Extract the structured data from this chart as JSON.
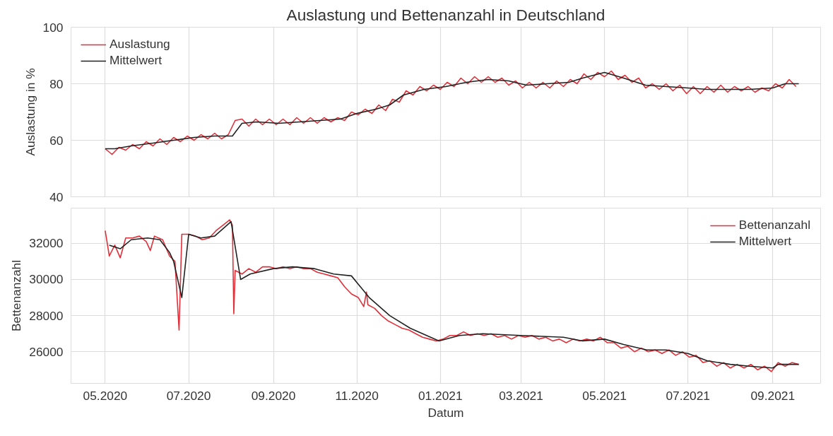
{
  "chart_data": [
    {
      "type": "line",
      "title": "Auslastung und Bettenanzahl in Deutschland",
      "ylabel": "Auslastung in %",
      "xlim": [
        "2020-04-06",
        "2021-10-06"
      ],
      "ylim": [
        40,
        100
      ],
      "yticks": [
        40,
        60,
        80,
        100
      ],
      "xticks": [
        {
          "value": "2020-05-01",
          "label": null
        },
        {
          "value": "2020-07-01",
          "label": null
        },
        {
          "value": "2020-09-01",
          "label": null
        },
        {
          "value": "2020-11-01",
          "label": null
        },
        {
          "value": "2021-01-01",
          "label": null
        },
        {
          "value": "2021-03-01",
          "label": null
        },
        {
          "value": "2021-05-01",
          "label": null
        },
        {
          "value": "2021-07-01",
          "label": null
        },
        {
          "value": "2021-09-01",
          "label": null
        }
      ],
      "tick_labels": "y",
      "grid": true,
      "legend": "top left",
      "marker": "none",
      "line_style": "solid",
      "series": [
        {
          "name": "Auslastung",
          "color": "#e0303a",
          "x": [
            "2020-05-01",
            "2020-05-06",
            "2020-05-11",
            "2020-05-16",
            "2020-05-21",
            "2020-05-26",
            "2020-05-31",
            "2020-06-05",
            "2020-06-10",
            "2020-06-15",
            "2020-06-20",
            "2020-06-25",
            "2020-06-30",
            "2020-07-05",
            "2020-07-10",
            "2020-07-15",
            "2020-07-20",
            "2020-07-25",
            "2020-07-30",
            "2020-08-04",
            "2020-08-09",
            "2020-08-14",
            "2020-08-19",
            "2020-08-24",
            "2020-08-29",
            "2020-09-03",
            "2020-09-08",
            "2020-09-13",
            "2020-09-18",
            "2020-09-23",
            "2020-09-28",
            "2020-10-03",
            "2020-10-08",
            "2020-10-13",
            "2020-10-18",
            "2020-10-23",
            "2020-10-28",
            "2020-11-02",
            "2020-11-07",
            "2020-11-12",
            "2020-11-17",
            "2020-11-22",
            "2020-11-27",
            "2020-12-02",
            "2020-12-07",
            "2020-12-12",
            "2020-12-17",
            "2020-12-22",
            "2020-12-27",
            "2021-01-01",
            "2021-01-06",
            "2021-01-11",
            "2021-01-16",
            "2021-01-21",
            "2021-01-26",
            "2021-01-31",
            "2021-02-05",
            "2021-02-10",
            "2021-02-15",
            "2021-02-20",
            "2021-02-25",
            "2021-03-02",
            "2021-03-07",
            "2021-03-12",
            "2021-03-17",
            "2021-03-22",
            "2021-03-27",
            "2021-04-01",
            "2021-04-06",
            "2021-04-11",
            "2021-04-16",
            "2021-04-21",
            "2021-04-26",
            "2021-05-01",
            "2021-05-06",
            "2021-05-11",
            "2021-05-16",
            "2021-05-21",
            "2021-05-26",
            "2021-05-31",
            "2021-06-05",
            "2021-06-10",
            "2021-06-15",
            "2021-06-20",
            "2021-06-25",
            "2021-06-30",
            "2021-07-05",
            "2021-07-10",
            "2021-07-15",
            "2021-07-20",
            "2021-07-25",
            "2021-07-30",
            "2021-08-04",
            "2021-08-09",
            "2021-08-14",
            "2021-08-19",
            "2021-08-24",
            "2021-08-29",
            "2021-09-03",
            "2021-09-08",
            "2021-09-13",
            "2021-09-18"
          ],
          "values": [
            57,
            55,
            57.5,
            56.5,
            58.5,
            57,
            59.5,
            58,
            60.5,
            58.5,
            61,
            59.5,
            61.5,
            60,
            62,
            60.5,
            62.5,
            60.5,
            62,
            67,
            67.5,
            65,
            67.5,
            65.5,
            67.5,
            65.5,
            67.5,
            65.5,
            68,
            66,
            68,
            66,
            68,
            66.5,
            68,
            67,
            70,
            69,
            71,
            69.5,
            72.5,
            70.5,
            74.5,
            73.5,
            77.5,
            76,
            79,
            77.5,
            79.5,
            78,
            80.5,
            79,
            82,
            80,
            82.5,
            80.5,
            82.5,
            80.5,
            82,
            79.5,
            81,
            78.5,
            80.5,
            78.5,
            80.5,
            78.5,
            81,
            79,
            81.5,
            80,
            83.5,
            81.5,
            84,
            82.5,
            84.5,
            81.5,
            83,
            80.5,
            82,
            78.5,
            80,
            78,
            80,
            77.5,
            79.5,
            76.5,
            79,
            76.5,
            79,
            77,
            79.5,
            77,
            79,
            77.5,
            79,
            77,
            78.5,
            77.5,
            80,
            78.5,
            81.5,
            79
          ]
        },
        {
          "name": "Mittelwert",
          "color": "#222222",
          "x": [
            "2020-05-01",
            "2020-05-08",
            "2020-05-20",
            "2020-06-05",
            "2020-06-20",
            "2020-07-05",
            "2020-07-20",
            "2020-08-02",
            "2020-08-09",
            "2020-08-20",
            "2020-09-05",
            "2020-09-20",
            "2020-10-05",
            "2020-10-20",
            "2020-11-01",
            "2020-11-15",
            "2020-11-25",
            "2020-12-05",
            "2020-12-20",
            "2021-01-05",
            "2021-01-20",
            "2021-02-05",
            "2021-02-20",
            "2021-03-05",
            "2021-03-20",
            "2021-04-05",
            "2021-04-15",
            "2021-05-01",
            "2021-05-15",
            "2021-05-31",
            "2021-06-15",
            "2021-07-01",
            "2021-07-15",
            "2021-08-01",
            "2021-08-15",
            "2021-09-01",
            "2021-09-10",
            "2021-09-20"
          ],
          "values": [
            57,
            57,
            58,
            59,
            60,
            61,
            61.5,
            61.5,
            66,
            66.5,
            66,
            66.5,
            67,
            67.5,
            69.5,
            71,
            72.5,
            76,
            78,
            79,
            80.5,
            81.5,
            81,
            79.5,
            80,
            80.5,
            82,
            84,
            82,
            79.5,
            79,
            78.5,
            78,
            78,
            78,
            78.5,
            80,
            80
          ]
        }
      ]
    },
    {
      "type": "line",
      "xlabel": "Datum",
      "ylabel": "Bettenanzahl",
      "xlim": [
        "2020-04-06",
        "2021-10-06"
      ],
      "ylim": [
        24250,
        33950
      ],
      "yticks": [
        26000,
        28000,
        30000,
        32000
      ],
      "xticks": [
        {
          "value": "2020-05-01",
          "label": "05.2020"
        },
        {
          "value": "2020-07-01",
          "label": "07.2020"
        },
        {
          "value": "2020-09-01",
          "label": "09.2020"
        },
        {
          "value": "2020-11-01",
          "label": "11.2020"
        },
        {
          "value": "2021-01-01",
          "label": "01.2021"
        },
        {
          "value": "2021-03-01",
          "label": "03.2021"
        },
        {
          "value": "2021-05-01",
          "label": "05.2021"
        },
        {
          "value": "2021-07-01",
          "label": "07.2021"
        },
        {
          "value": "2021-09-01",
          "label": "09.2021"
        }
      ],
      "grid": true,
      "legend": "top right",
      "marker": "none",
      "line_style": "solid",
      "series": [
        {
          "name": "Bettenanzahl",
          "color": "#e0303a",
          "x": [
            "2020-05-01",
            "2020-05-04",
            "2020-05-08",
            "2020-05-12",
            "2020-05-16",
            "2020-05-21",
            "2020-05-26",
            "2020-05-31",
            "2020-06-03",
            "2020-06-06",
            "2020-06-12",
            "2020-06-17",
            "2020-06-21",
            "2020-06-24",
            "2020-06-26",
            "2020-07-01",
            "2020-07-06",
            "2020-07-11",
            "2020-07-16",
            "2020-07-21",
            "2020-07-26",
            "2020-07-31",
            "2020-08-02",
            "2020-08-03",
            "2020-08-04",
            "2020-08-09",
            "2020-08-14",
            "2020-08-19",
            "2020-08-24",
            "2020-08-29",
            "2020-09-03",
            "2020-09-08",
            "2020-09-13",
            "2020-09-18",
            "2020-09-23",
            "2020-09-28",
            "2020-10-03",
            "2020-10-08",
            "2020-10-13",
            "2020-10-18",
            "2020-10-23",
            "2020-10-28",
            "2020-11-02",
            "2020-11-06",
            "2020-11-08",
            "2020-11-09",
            "2020-11-14",
            "2020-11-19",
            "2020-11-24",
            "2020-11-29",
            "2020-12-04",
            "2020-12-09",
            "2020-12-14",
            "2020-12-19",
            "2020-12-24",
            "2020-12-29",
            "2021-01-03",
            "2021-01-08",
            "2021-01-13",
            "2021-01-18",
            "2021-01-23",
            "2021-01-28",
            "2021-02-02",
            "2021-02-07",
            "2021-02-12",
            "2021-02-17",
            "2021-02-22",
            "2021-02-27",
            "2021-03-04",
            "2021-03-09",
            "2021-03-14",
            "2021-03-19",
            "2021-03-24",
            "2021-03-29",
            "2021-04-03",
            "2021-04-08",
            "2021-04-13",
            "2021-04-18",
            "2021-04-23",
            "2021-04-28",
            "2021-05-03",
            "2021-05-08",
            "2021-05-13",
            "2021-05-18",
            "2021-05-23",
            "2021-05-28",
            "2021-06-02",
            "2021-06-07",
            "2021-06-12",
            "2021-06-17",
            "2021-06-22",
            "2021-06-27",
            "2021-07-02",
            "2021-07-07",
            "2021-07-12",
            "2021-07-17",
            "2021-07-22",
            "2021-07-27",
            "2021-08-01",
            "2021-08-06",
            "2021-08-11",
            "2021-08-16",
            "2021-08-21",
            "2021-08-26",
            "2021-08-31",
            "2021-09-05",
            "2021-09-10",
            "2021-09-15",
            "2021-09-20"
          ],
          "values": [
            32700,
            31300,
            31900,
            31200,
            32300,
            32300,
            32400,
            32100,
            31600,
            32400,
            32200,
            31300,
            31000,
            27200,
            32500,
            32500,
            32400,
            32200,
            32300,
            32700,
            33000,
            33300,
            33000,
            28100,
            30500,
            30300,
            30600,
            30400,
            30700,
            30700,
            30600,
            30700,
            30600,
            30700,
            30600,
            30600,
            30400,
            30300,
            30200,
            30100,
            29600,
            29200,
            29000,
            28500,
            29300,
            28600,
            28400,
            28000,
            27700,
            27500,
            27300,
            27200,
            27000,
            26800,
            26700,
            26600,
            26700,
            26900,
            26900,
            27100,
            26900,
            27000,
            26900,
            27000,
            26800,
            26900,
            26700,
            26900,
            26800,
            26900,
            26700,
            26800,
            26600,
            26700,
            26500,
            26700,
            26600,
            26700,
            26600,
            26800,
            26500,
            26500,
            26200,
            26300,
            26000,
            26200,
            26000,
            26100,
            25900,
            26100,
            25800,
            26000,
            25700,
            25800,
            25400,
            25500,
            25200,
            25400,
            25100,
            25300,
            25100,
            25300,
            25000,
            25200,
            24900,
            25400,
            25200,
            25400,
            25300
          ]
        },
        {
          "name": "Mittelwert",
          "color": "#222222",
          "x": [
            "2020-05-04",
            "2020-05-12",
            "2020-05-20",
            "2020-06-01",
            "2020-06-10",
            "2020-06-17",
            "2020-06-20",
            "2020-06-26",
            "2020-07-01",
            "2020-07-10",
            "2020-07-20",
            "2020-08-01",
            "2020-08-08",
            "2020-08-15",
            "2020-09-01",
            "2020-09-15",
            "2020-10-01",
            "2020-10-15",
            "2020-10-28",
            "2020-11-10",
            "2020-11-25",
            "2020-12-10",
            "2020-12-31",
            "2021-01-15",
            "2021-02-01",
            "2021-03-01",
            "2021-04-01",
            "2021-04-15",
            "2021-05-01",
            "2021-05-15",
            "2021-06-01",
            "2021-06-15",
            "2021-07-01",
            "2021-07-15",
            "2021-08-01",
            "2021-08-15",
            "2021-09-01",
            "2021-09-05",
            "2021-09-20"
          ],
          "values": [
            31900,
            31700,
            32200,
            32300,
            32200,
            31500,
            31000,
            29000,
            32500,
            32300,
            32400,
            33200,
            30000,
            30300,
            30600,
            30700,
            30600,
            30300,
            30200,
            29000,
            28000,
            27300,
            26600,
            26900,
            27000,
            26900,
            26800,
            26600,
            26700,
            26400,
            26100,
            26100,
            25900,
            25500,
            25300,
            25200,
            25100,
            25300,
            25300
          ]
        }
      ]
    }
  ]
}
